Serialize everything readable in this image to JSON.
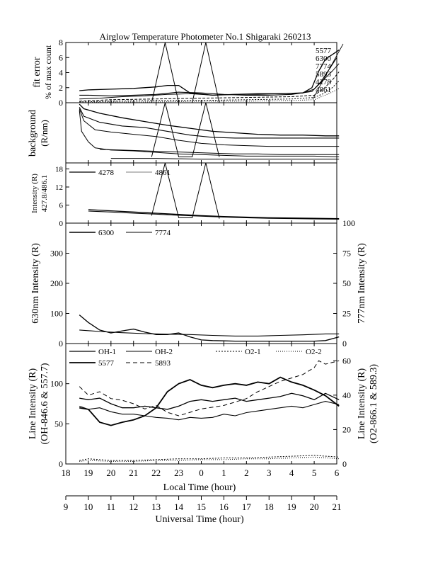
{
  "title": "Airglow Temperature Photometer No.1  Shigaraki  260213",
  "chart_data": [
    {
      "id": "fit",
      "type": "line",
      "ylabel1": "fit error",
      "ylabel2": "% of max count",
      "ylim": [
        0,
        8
      ],
      "yticks": [
        "0",
        "2",
        "4",
        "6",
        "8"
      ],
      "legend": [
        "5577",
        "6300",
        "7774",
        "5893",
        "4278",
        "4861"
      ],
      "series": [
        {
          "name": "a",
          "x": [
            18.6,
            19,
            20,
            21,
            22,
            22.5,
            23,
            23.5,
            24.5,
            25.5,
            26.5,
            27.5,
            28.5,
            28.9,
            29.2,
            29.5,
            29.9,
            30.1
          ],
          "y": [
            1.6,
            1.7,
            1.8,
            1.9,
            2.1,
            2.3,
            2.3,
            1.3,
            1.0,
            1.1,
            1.2,
            1.2,
            1.3,
            2.0,
            4.2,
            5.8,
            6.6,
            7.0
          ],
          "dash": "none"
        },
        {
          "name": "b",
          "x": [
            18.6,
            19,
            20,
            21,
            22,
            23,
            24,
            25,
            26,
            27,
            28,
            28.9,
            29.3,
            29.7,
            30.0
          ],
          "y": [
            1.0,
            1.0,
            0.9,
            1.0,
            1.1,
            1.4,
            1.3,
            1.1,
            1.0,
            1.0,
            1.1,
            1.5,
            2.8,
            4.6,
            6.0
          ],
          "dash": "none"
        },
        {
          "name": "c",
          "x": [
            18.6,
            19.5,
            20.5,
            21.5,
            22.5,
            23.5,
            24.5,
            25.5,
            26.5,
            27.5,
            28.5,
            29.0,
            29.4,
            29.8,
            30.1
          ],
          "y": [
            0.5,
            0.6,
            0.8,
            0.9,
            1.1,
            1.2,
            1.0,
            1.1,
            1.1,
            1.2,
            1.3,
            1.8,
            3.0,
            4.2,
            5.2
          ],
          "dash": "none"
        },
        {
          "name": "d",
          "x": [
            18.6,
            20,
            22,
            24,
            26,
            28,
            29.0,
            29.4,
            29.8,
            30.1
          ],
          "y": [
            0.2,
            0.4,
            0.5,
            0.6,
            0.7,
            0.8,
            1.0,
            1.8,
            3.0,
            4.1
          ],
          "dash": "4,2"
        },
        {
          "name": "e",
          "x": [
            18.6,
            20,
            22,
            24,
            26,
            28,
            29.0,
            29.4,
            29.8,
            30.1
          ],
          "y": [
            0.1,
            0.2,
            0.3,
            0.3,
            0.4,
            0.5,
            0.7,
            1.2,
            2.0,
            2.9
          ],
          "dash": "2,2"
        },
        {
          "name": "f",
          "x": [
            18.6,
            20,
            22,
            24,
            26,
            28,
            29.0,
            29.4,
            29.8,
            30.1
          ],
          "y": [
            0.0,
            0.1,
            0.1,
            0.2,
            0.2,
            0.3,
            0.4,
            0.9,
            1.4,
            1.9
          ],
          "dash": "1,2"
        },
        {
          "name": "spike",
          "x": [
            21.8,
            22.4,
            23.0,
            23.6,
            24.2,
            24.8
          ],
          "y": [
            0,
            8,
            0,
            0,
            8,
            0
          ],
          "dash": "none"
        }
      ]
    },
    {
      "id": "bg",
      "type": "line",
      "ylabel1": "background",
      "ylabel2": "(R/nm)",
      "ylim": [
        0,
        80
      ],
      "yticks": [],
      "series": [
        {
          "x": [
            18.6,
            18.8,
            19.5,
            20.5,
            21.5,
            22.5,
            23.5,
            24.5,
            25.5,
            26.5,
            27.5,
            28.5,
            29.5,
            30.1
          ],
          "y": [
            78,
            72,
            66,
            60,
            55,
            50,
            46,
            42,
            40,
            38,
            37,
            37,
            36,
            36
          ],
          "dash": "none"
        },
        {
          "x": [
            18.6,
            18.8,
            19.5,
            20.5,
            21.5,
            22.5,
            23.5,
            24.5,
            25.5,
            26.5,
            27.5,
            28.5,
            29.5,
            30.1
          ],
          "y": [
            74,
            62,
            54,
            49,
            47,
            42,
            37,
            34,
            33,
            33,
            33,
            33,
            33,
            33
          ],
          "dash": "none"
        },
        {
          "x": [
            18.6,
            18.8,
            19.3,
            20,
            21,
            22,
            23,
            24,
            25,
            26,
            27,
            28,
            29,
            30.1
          ],
          "y": [
            72,
            56,
            44,
            41,
            38,
            35,
            30,
            26,
            24,
            23,
            22,
            22,
            22,
            22
          ],
          "dash": "none"
        },
        {
          "x": [
            18.6,
            18.7,
            19.0,
            19.3,
            20,
            21,
            22,
            23,
            24,
            25,
            26,
            27,
            28,
            29,
            30.1
          ],
          "y": [
            70,
            42,
            28,
            20,
            17,
            16,
            14,
            12,
            11,
            10,
            9,
            9,
            9,
            9,
            8
          ],
          "dash": "none"
        },
        {
          "x": [
            19.5,
            20.5,
            21.5,
            22.5,
            23.5,
            24.5,
            25.5,
            26.5,
            27.5,
            28.5,
            29.5,
            30.1
          ],
          "y": [
            18,
            17,
            16,
            15,
            14,
            13,
            12,
            12,
            11,
            11,
            11,
            11
          ],
          "dash": "none"
        },
        {
          "x": [
            20,
            22,
            24,
            26,
            28,
            30.1
          ],
          "y": [
            6,
            6,
            5,
            5,
            5,
            5
          ],
          "dash": "none"
        },
        {
          "x": [
            21.8,
            22.4,
            23.0,
            23.6,
            24.2,
            24.8
          ],
          "y": [
            8,
            80,
            8,
            8,
            80,
            8
          ],
          "dash": "none"
        }
      ]
    },
    {
      "id": "int",
      "type": "line",
      "ylabel1": "Intensity (R)",
      "ylabel2": "427.8/486.1",
      "ylim": [
        0,
        20
      ],
      "yticks": [
        "0",
        "6",
        "12",
        "18"
      ],
      "legend": [
        "4278",
        "4861"
      ],
      "series": [
        {
          "x": [
            19.0,
            20,
            21,
            22,
            23,
            24,
            25,
            26,
            27,
            28,
            29,
            30.1
          ],
          "y": [
            4.5,
            4.1,
            3.7,
            3.3,
            2.9,
            2.5,
            2.2,
            2.0,
            1.8,
            1.7,
            1.6,
            1.5
          ],
          "dash": "none"
        },
        {
          "x": [
            19.0,
            20,
            21,
            22,
            23,
            24,
            25,
            26,
            27,
            28,
            29,
            30.1
          ],
          "y": [
            4.0,
            3.7,
            3.3,
            3.0,
            2.6,
            2.3,
            2.0,
            1.8,
            1.6,
            1.5,
            1.4,
            1.3
          ],
          "dash": "none"
        },
        {
          "x": [
            21.8,
            22.4,
            23.0,
            23.6,
            24.2,
            24.8
          ],
          "y": [
            2.5,
            20,
            1.8,
            1.8,
            20,
            1.5
          ],
          "dash": "none"
        }
      ]
    },
    {
      "id": "r630",
      "type": "line",
      "ylabel1": "630nm Intensity (R)",
      "ylabel2": "777nm Intensity (R)",
      "ylim": [
        0,
        400
      ],
      "yticks": [
        "0",
        "100",
        "200",
        "300"
      ],
      "y2lim": [
        0,
        100
      ],
      "y2ticks": [
        "0",
        "25",
        "50",
        "75",
        "100"
      ],
      "legend": [
        "6300",
        "7774"
      ],
      "series": [
        {
          "x": [
            18.6,
            19,
            19.5,
            20,
            20.5,
            21,
            21.5,
            22,
            22.5,
            23,
            23.5,
            24,
            24.5,
            25,
            25.5,
            26,
            26.5,
            27,
            27.5,
            28,
            28.5,
            29,
            29.5,
            30.1
          ],
          "y": [
            95,
            70,
            45,
            35,
            42,
            48,
            38,
            30,
            30,
            35,
            22,
            12,
            10,
            9,
            8,
            8,
            8,
            8,
            8,
            8,
            8,
            8,
            10,
            22
          ],
          "dash": "none"
        },
        {
          "x": [
            18.6,
            19.5,
            20.5,
            21.5,
            22.5,
            23.5,
            24.5,
            25.5,
            26.5,
            27.5,
            28.5,
            29.5,
            30.1
          ],
          "y": [
            45,
            40,
            36,
            33,
            31,
            30,
            27,
            25,
            25,
            27,
            29,
            32,
            32
          ],
          "dash": "none"
        }
      ]
    },
    {
      "id": "oh",
      "type": "line",
      "ylabel1": "Line Intensity (R)",
      "ylabel2": "(OH-846.6 & 557.7)",
      "y2label1": "Line Intensity (R)",
      "y2label2": "(O2-866.1 & 589.3)",
      "ylim": [
        0,
        150
      ],
      "yticks": [
        "0",
        "50",
        "100"
      ],
      "y2lim": [
        0,
        70
      ],
      "y2ticks": [
        "0",
        "20",
        "40",
        "60"
      ],
      "legend": [
        "OH-1",
        "OH-2",
        "O2-1",
        "O2-2",
        "5577",
        "5893"
      ],
      "series": [
        {
          "name": "OH-1",
          "x": [
            18.6,
            19,
            19.5,
            20,
            20.5,
            21,
            21.5,
            22,
            22.5,
            23,
            23.5,
            24,
            24.5,
            25,
            25.5,
            26,
            26.5,
            27,
            27.5,
            28,
            28.5,
            29,
            29.5,
            30.1
          ],
          "y": [
            82,
            80,
            82,
            75,
            70,
            70,
            72,
            70,
            68,
            72,
            78,
            80,
            78,
            80,
            82,
            78,
            80,
            82,
            84,
            88,
            85,
            80,
            88,
            80
          ],
          "dash": "none"
        },
        {
          "name": "OH-2",
          "x": [
            18.6,
            19,
            19.5,
            20,
            20.5,
            21,
            21.5,
            22,
            22.5,
            23,
            23.5,
            24,
            24.5,
            25,
            25.5,
            26,
            26.5,
            27,
            27.5,
            28,
            28.5,
            29,
            29.5,
            30.1
          ],
          "y": [
            72,
            68,
            70,
            65,
            62,
            62,
            60,
            58,
            57,
            55,
            58,
            57,
            58,
            62,
            60,
            64,
            66,
            68,
            70,
            72,
            70,
            74,
            78,
            74
          ],
          "dash": "none"
        },
        {
          "name": "5577",
          "x": [
            18.6,
            19,
            19.5,
            20,
            20.5,
            21,
            21.5,
            22,
            22.5,
            23,
            23.5,
            24,
            24.5,
            25,
            25.5,
            26,
            26.5,
            27,
            27.5,
            28,
            28.5,
            29,
            29.5,
            30.1
          ],
          "y": [
            70,
            68,
            52,
            48,
            52,
            55,
            60,
            70,
            90,
            100,
            105,
            98,
            95,
            98,
            100,
            98,
            102,
            100,
            108,
            102,
            98,
            92,
            85,
            72
          ],
          "dash": "none"
        },
        {
          "name": "5893",
          "x": [
            18.6,
            19,
            19.5,
            20,
            20.5,
            21,
            21.5,
            22,
            22.5,
            23,
            23.5,
            24,
            24.5,
            25,
            25.5,
            26,
            26.5,
            27,
            27.5,
            28,
            28.5,
            29,
            29.2,
            29.5,
            30.1
          ],
          "y": [
            45,
            40,
            42,
            38,
            37,
            35,
            32,
            34,
            30,
            28,
            30,
            32,
            33,
            34,
            36,
            38,
            42,
            45,
            48,
            50,
            52,
            56,
            60,
            58,
            60
          ],
          "dash": "6,4",
          "axis": "y2"
        },
        {
          "name": "O2-1",
          "x": [
            18.6,
            19,
            20,
            21,
            22,
            23,
            24,
            25,
            26,
            27,
            28,
            29,
            30.1
          ],
          "y": [
            2,
            3,
            2,
            2,
            2.5,
            3,
            3,
            3.5,
            3.5,
            4,
            4.5,
            5,
            4
          ],
          "dash": "2,2",
          "axis": "y2"
        },
        {
          "name": "O2-2",
          "x": [
            18.6,
            19,
            20,
            21,
            22,
            23,
            24,
            25,
            26,
            27,
            28,
            29,
            30.1
          ],
          "y": [
            1.5,
            2,
            1.5,
            1.5,
            2,
            2,
            2.5,
            2.5,
            3,
            3,
            3.5,
            4,
            3
          ],
          "dash": "1,2",
          "axis": "y2"
        }
      ]
    }
  ],
  "xaxis": {
    "lt_ticks": [
      "18",
      "19",
      "20",
      "21",
      "22",
      "23",
      "0",
      "1",
      "2",
      "3",
      "4",
      "5",
      "6"
    ],
    "lt_label": "Local Time (hour)",
    "ut_ticks": [
      "9",
      "10",
      "11",
      "12",
      "13",
      "14",
      "15",
      "16",
      "17",
      "18",
      "19",
      "20",
      "21"
    ],
    "ut_label": "Universal Time (hour)"
  }
}
